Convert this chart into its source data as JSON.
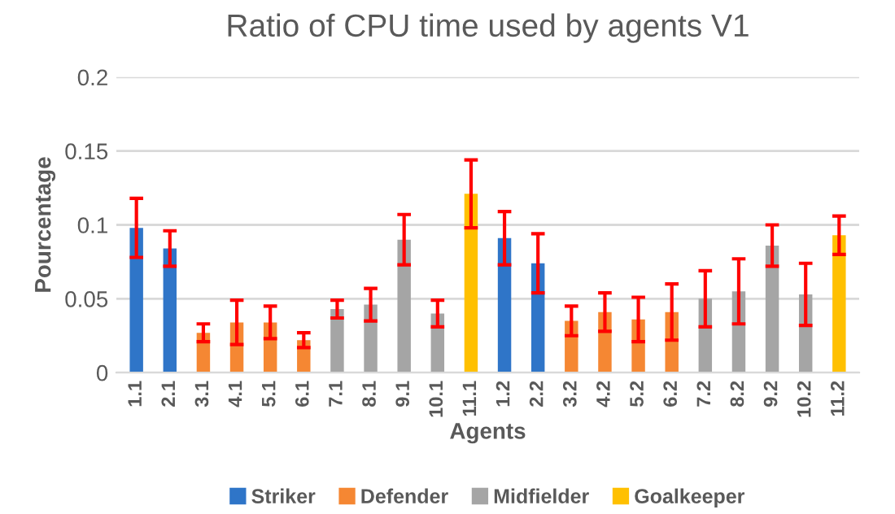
{
  "chart_data": {
    "type": "bar",
    "title": "Ratio of CPU time used by agents V1",
    "xlabel": "Agents",
    "ylabel": "Pourcentage",
    "categories": [
      "1.1",
      "2.1",
      "3.1",
      "4.1",
      "5.1",
      "6.1",
      "7.1",
      "8.1",
      "9.1",
      "10.1",
      "11.1",
      "1.2",
      "2.2",
      "3.2",
      "4.2",
      "5.2",
      "6.2",
      "7.2",
      "8.2",
      "9.2",
      "10.2",
      "11.2"
    ],
    "series": [
      {
        "name": "Striker",
        "color": "#2f75c8",
        "values": [
          0.098,
          0.084,
          null,
          null,
          null,
          null,
          null,
          null,
          null,
          null,
          null,
          0.091,
          0.074,
          null,
          null,
          null,
          null,
          null,
          null,
          null,
          null,
          null
        ],
        "errors": [
          0.02,
          0.012,
          null,
          null,
          null,
          null,
          null,
          null,
          null,
          null,
          null,
          0.018,
          0.02,
          null,
          null,
          null,
          null,
          null,
          null,
          null,
          null,
          null
        ]
      },
      {
        "name": "Defender",
        "color": "#f58733",
        "values": [
          null,
          null,
          0.027,
          0.034,
          0.034,
          0.022,
          null,
          null,
          null,
          null,
          null,
          null,
          null,
          0.035,
          0.041,
          0.036,
          0.041,
          null,
          null,
          null,
          null,
          null
        ],
        "errors": [
          null,
          null,
          0.006,
          0.015,
          0.011,
          0.005,
          null,
          null,
          null,
          null,
          null,
          null,
          null,
          0.01,
          0.013,
          0.015,
          0.019,
          null,
          null,
          null,
          null,
          null
        ]
      },
      {
        "name": "Midfielder",
        "color": "#a5a5a5",
        "values": [
          null,
          null,
          null,
          null,
          null,
          null,
          0.043,
          0.046,
          0.09,
          0.04,
          null,
          null,
          null,
          null,
          null,
          null,
          null,
          0.05,
          0.055,
          0.086,
          0.053,
          null
        ],
        "errors": [
          null,
          null,
          null,
          null,
          null,
          null,
          0.006,
          0.011,
          0.017,
          0.009,
          null,
          null,
          null,
          null,
          null,
          null,
          null,
          0.019,
          0.022,
          0.014,
          0.021,
          null
        ]
      },
      {
        "name": "Goalkeeper",
        "color": "#ffc000",
        "values": [
          null,
          null,
          null,
          null,
          null,
          null,
          null,
          null,
          null,
          null,
          0.121,
          null,
          null,
          null,
          null,
          null,
          null,
          null,
          null,
          null,
          null,
          0.093
        ],
        "errors": [
          null,
          null,
          null,
          null,
          null,
          null,
          null,
          null,
          null,
          null,
          0.023,
          null,
          null,
          null,
          null,
          null,
          null,
          null,
          null,
          null,
          null,
          0.013
        ]
      }
    ],
    "ylim": [
      0,
      0.2
    ],
    "yticks": [
      0,
      0.05,
      0.1,
      0.15,
      0.2
    ],
    "grid": "y",
    "legend": "bottom"
  }
}
